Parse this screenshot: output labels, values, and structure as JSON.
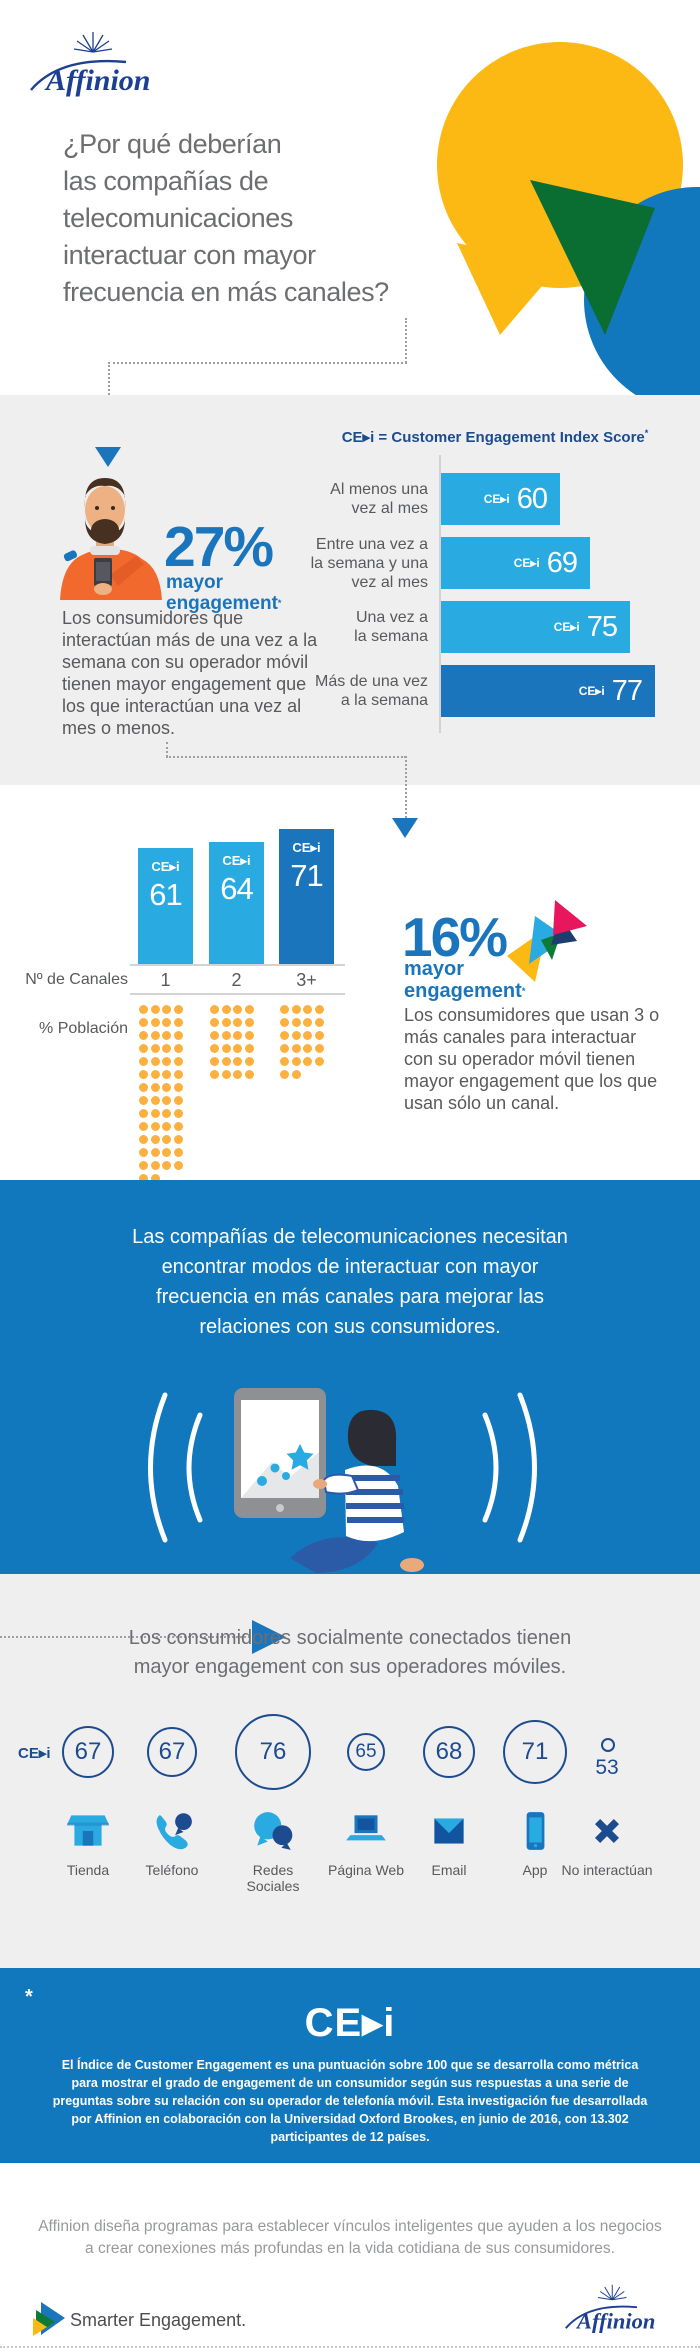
{
  "header": {
    "logo_text": "Affinion",
    "title_lines": [
      "¿Por qué deberían",
      "las compañías de",
      "telecomunicaciones",
      "interactuar con mayor",
      "frecuencia en más canales?"
    ]
  },
  "frequency_section": {
    "legend_cei": "CE▸i",
    "legend_rest": " = Customer Engagement Index Score",
    "asterisk": "*",
    "stat_value": "27%",
    "stat_label_lines": [
      "mayor",
      "engagement"
    ],
    "paragraph_lines": [
      "Los consumidores que",
      "interactúan más de una vez a la",
      "semana con su operador móvil",
      "tienen mayor engagement que",
      "los que interactúan una vez al",
      "mes o menos."
    ]
  },
  "channels_section": {
    "stat_value": "16%",
    "stat_label_lines": [
      "mayor",
      "engagement"
    ],
    "asterisk": "*",
    "paragraph_lines": [
      "Los consumidores que usan 3 o",
      "más canales para interactuar",
      "con su operador móvil tienen",
      "mayor engagement que los que",
      "usan sólo un canal."
    ]
  },
  "banner": {
    "text_lines": [
      "Las compañías de telecomunicaciones necesitan",
      "encontrar modos de interactuar con mayor",
      "frecuencia en más canales para mejorar las",
      "relaciones con sus consumidores."
    ]
  },
  "social_section": {
    "intro_lines": [
      "Los consumidores socialmente conectados tienen",
      "mayor engagement con sus operadores móviles."
    ],
    "cei_label": "CE▸i",
    "channels": [
      {
        "label": "Tienda",
        "score": 67,
        "icon": "store-icon"
      },
      {
        "label": "Teléfono",
        "score": 67,
        "icon": "phone-icon"
      },
      {
        "label": "Redes Sociales",
        "score": 76,
        "icon": "social-icon"
      },
      {
        "label": "Página Web",
        "score": 65,
        "icon": "web-icon"
      },
      {
        "label": "Email",
        "score": 68,
        "icon": "email-icon"
      },
      {
        "label": "App",
        "score": 71,
        "icon": "app-icon"
      },
      {
        "label": "No interactúan",
        "score": 53,
        "icon": "no-interaction-icon"
      }
    ]
  },
  "footnote": {
    "asterisk": "*",
    "cei_title": "CE▸i",
    "text_lines": [
      "El Índice de Customer Engagement es una puntuación sobre 100 que se desarrolla como métrica",
      "para mostrar el grado de engagement de un consumidor según sus respuestas a una serie de",
      "preguntas sobre su relación con su operador de telefonía móvil. Esta investigación fue desarrollada",
      "por Affinion en colaboración con la Universidad Oxford Brookes, en junio de 2016, con 13.302",
      "participantes de 12 países."
    ]
  },
  "footer": {
    "text_lines": [
      "Affinion diseña programas para establecer vínculos inteligentes que ayuden a los negocios",
      "a crear conexiones más profundas en la vida cotidiana de sus consumidores."
    ],
    "tagline": "Smarter Engagement.",
    "logo_text": "Affinion"
  },
  "colors": {
    "light_blue": "#29abe2",
    "medium_blue": "#1b75bc",
    "banner_blue": "#1278be",
    "navy": "#1d4b8f",
    "yellow": "#fdb913",
    "dot_yellow": "#fbb040",
    "green": "#0a6e32",
    "pink": "#e8175d",
    "orange": "#f2692e",
    "gray_bg": "#efeff0",
    "title_gray": "#6d6e71",
    "body_gray": "#58595b"
  },
  "chart_data": [
    {
      "type": "bar",
      "orientation": "horizontal",
      "title": "CE▸i = Customer Engagement Index Score*",
      "unit": "CE▸i",
      "categories": [
        "Al menos una\nvez al mes",
        "Entre una vez a\nla semana y una\nvez al mes",
        "Una vez a\nla semana",
        "Más de una vez\na la semana"
      ],
      "values": [
        60,
        69,
        75,
        77
      ],
      "highlight_index": 3,
      "xlim": [
        0,
        100
      ],
      "grid": false,
      "legend_position": "top"
    },
    {
      "type": "bar",
      "orientation": "vertical",
      "unit": "CE▸i",
      "xlabel": "Nº de Canales",
      "categories": [
        "1",
        "2",
        "3+"
      ],
      "values": [
        61,
        64,
        71
      ],
      "highlight_index": 2,
      "population_label": "% Población",
      "population_values": [
        54,
        24,
        22
      ],
      "grid": false
    },
    {
      "type": "bubble",
      "unit": "CE▸i",
      "categories": [
        "Tienda",
        "Teléfono",
        "Redes Sociales",
        "Página Web",
        "Email",
        "App",
        "No interactúan"
      ],
      "values": [
        67,
        67,
        76,
        65,
        68,
        71,
        53
      ],
      "note": "bubble size proportional to score"
    }
  ]
}
